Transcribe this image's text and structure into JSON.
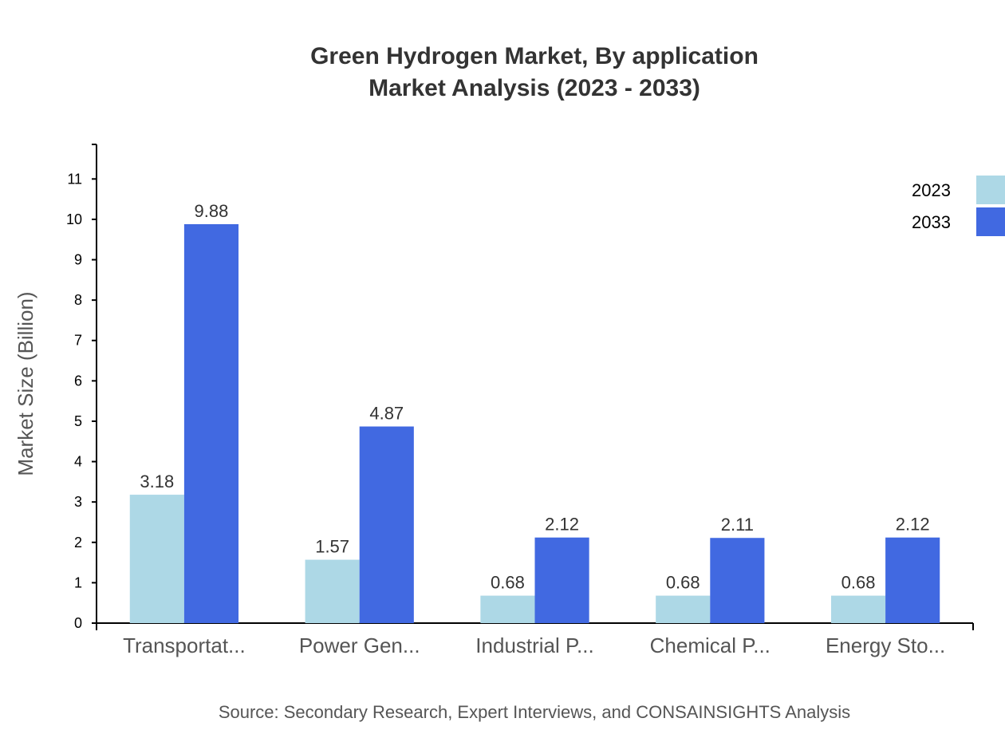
{
  "chart_data": {
    "type": "bar",
    "title": "Green Hydrogen Market, By application",
    "subtitle": "Market Analysis (2023 - 2033)",
    "xlabel": "",
    "ylabel": "Market Size (Billion)",
    "source": "Source: Secondary Research, Expert Interviews, and CONSAINSIGHTS Analysis",
    "categories": [
      "Transportat...",
      "Power Gen...",
      "Industrial P...",
      "Chemical P...",
      "Energy Sto..."
    ],
    "series": [
      {
        "name": "2023",
        "color": "#add8e6",
        "values": [
          3.18,
          1.57,
          0.68,
          0.68,
          0.68
        ]
      },
      {
        "name": "2033",
        "color": "#4169e1",
        "values": [
          9.88,
          4.87,
          2.12,
          2.11,
          2.12
        ]
      }
    ],
    "ylim": [
      0,
      11.856
    ],
    "yticks": [
      "0",
      "1",
      "2",
      "3",
      "4",
      "5",
      "6",
      "7",
      "8",
      "9",
      "10",
      "11"
    ],
    "grid": false,
    "legend": "top-right"
  }
}
